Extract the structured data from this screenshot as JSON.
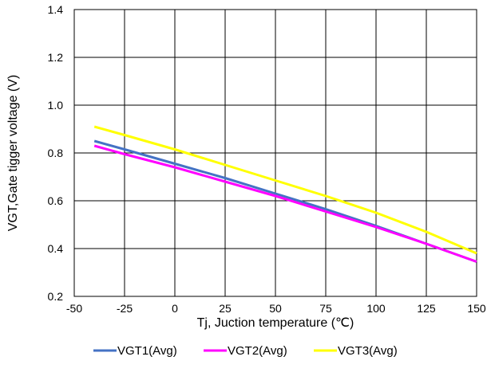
{
  "chart_data": {
    "type": "line",
    "xlabel": "Tj, Juction temperature (℃)",
    "ylabel": "VGT,Gate tigger voltage (V)",
    "xlim": [
      -50,
      150
    ],
    "ylim": [
      0.2,
      1.4
    ],
    "xticks": [
      -50,
      -25,
      0,
      25,
      50,
      75,
      100,
      125,
      150
    ],
    "yticks": [
      0.2,
      0.4,
      0.6,
      0.8,
      1.0,
      1.2,
      1.4
    ],
    "xtick_labels": [
      "-50",
      "-25",
      "0",
      "25",
      "50",
      "75",
      "100",
      "125",
      "150"
    ],
    "ytick_labels": [
      "0.2",
      "0.4",
      "0.6",
      "0.8",
      "1.0",
      "1.2",
      "1.4"
    ],
    "grid": true,
    "legend_position": "bottom",
    "series": [
      {
        "name": "VGT1(Avg)",
        "color": "#4472C4",
        "x": [
          -40,
          -25,
          0,
          25,
          50,
          75,
          100,
          125,
          150
        ],
        "y": [
          0.85,
          0.815,
          0.755,
          0.695,
          0.63,
          0.565,
          0.495,
          0.42,
          0.345
        ]
      },
      {
        "name": "VGT2(Avg)",
        "color": "#FF00FF",
        "x": [
          -40,
          -25,
          0,
          25,
          50,
          75,
          100,
          125,
          150
        ],
        "y": [
          0.83,
          0.795,
          0.74,
          0.68,
          0.62,
          0.555,
          0.49,
          0.42,
          0.345
        ]
      },
      {
        "name": "VGT3(Avg)",
        "color": "#FFFF00",
        "x": [
          -40,
          -25,
          0,
          25,
          50,
          75,
          100,
          125,
          150
        ],
        "y": [
          0.91,
          0.875,
          0.815,
          0.75,
          0.685,
          0.62,
          0.55,
          0.47,
          0.38
        ]
      }
    ]
  }
}
